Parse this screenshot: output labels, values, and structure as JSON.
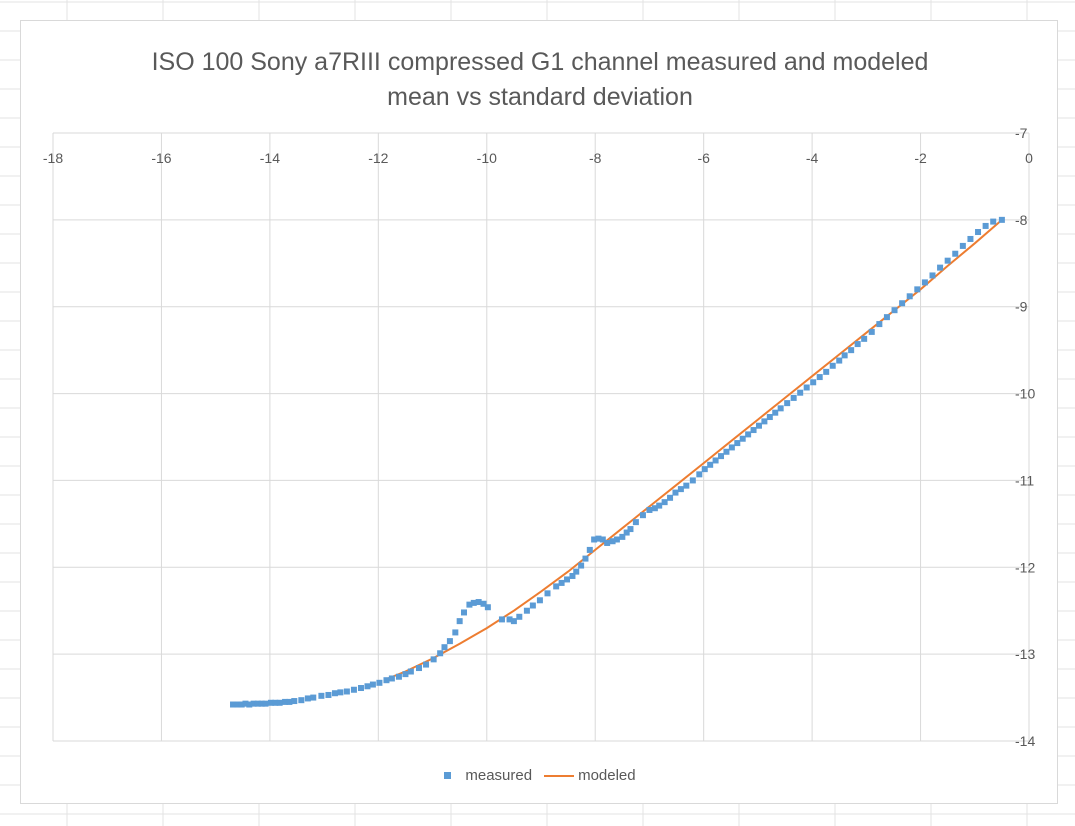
{
  "chart_data": {
    "type": "scatter",
    "title_line1": "ISO 100 Sony a7RIII compressed G1 channel measured and modeled",
    "title_line2": "mean vs standard deviation",
    "xlabel": "",
    "ylabel": "",
    "xlim": [
      -18,
      0
    ],
    "ylim": [
      -14,
      -7
    ],
    "x_ticks": [
      "-18",
      "-16",
      "-14",
      "-12",
      "-10",
      "-8",
      "-6",
      "-4",
      "-2",
      "0"
    ],
    "y_ticks": [
      "-7",
      "-8",
      "-9",
      "-10",
      "-11",
      "-12",
      "-13",
      "-14"
    ],
    "grid": true,
    "legend_position": "bottom",
    "series": [
      {
        "name": "measured",
        "kind": "markers",
        "color": "#5b9bd5",
        "points": [
          [
            -14.68,
            -13.58
          ],
          [
            -14.6,
            -13.58
          ],
          [
            -14.52,
            -13.58
          ],
          [
            -14.45,
            -13.57
          ],
          [
            -14.38,
            -13.58
          ],
          [
            -14.3,
            -13.57
          ],
          [
            -14.22,
            -13.57
          ],
          [
            -14.15,
            -13.57
          ],
          [
            -14.08,
            -13.57
          ],
          [
            -13.98,
            -13.56
          ],
          [
            -13.9,
            -13.56
          ],
          [
            -13.82,
            -13.56
          ],
          [
            -13.72,
            -13.55
          ],
          [
            -13.64,
            -13.55
          ],
          [
            -13.55,
            -13.54
          ],
          [
            -13.42,
            -13.53
          ],
          [
            -13.3,
            -13.51
          ],
          [
            -13.2,
            -13.5
          ],
          [
            -13.05,
            -13.48
          ],
          [
            -12.92,
            -13.47
          ],
          [
            -12.8,
            -13.45
          ],
          [
            -12.7,
            -13.44
          ],
          [
            -12.58,
            -13.43
          ],
          [
            -12.45,
            -13.41
          ],
          [
            -12.32,
            -13.39
          ],
          [
            -12.2,
            -13.37
          ],
          [
            -12.1,
            -13.35
          ],
          [
            -11.98,
            -13.33
          ],
          [
            -11.85,
            -13.3
          ],
          [
            -11.75,
            -13.28
          ],
          [
            -11.62,
            -13.26
          ],
          [
            -11.5,
            -13.23
          ],
          [
            -11.4,
            -13.2
          ],
          [
            -11.25,
            -13.16
          ],
          [
            -11.12,
            -13.12
          ],
          [
            -10.98,
            -13.06
          ],
          [
            -10.86,
            -12.99
          ],
          [
            -10.78,
            -12.92
          ],
          [
            -10.68,
            -12.85
          ],
          [
            -10.58,
            -12.75
          ],
          [
            -10.5,
            -12.62
          ],
          [
            -10.42,
            -12.52
          ],
          [
            -10.32,
            -12.43
          ],
          [
            -10.24,
            -12.41
          ],
          [
            -10.15,
            -12.4
          ],
          [
            -10.06,
            -12.42
          ],
          [
            -9.98,
            -12.46
          ],
          [
            -9.72,
            -12.6
          ],
          [
            -9.58,
            -12.6
          ],
          [
            -9.5,
            -12.62
          ],
          [
            -9.4,
            -12.57
          ],
          [
            -9.26,
            -12.5
          ],
          [
            -9.15,
            -12.44
          ],
          [
            -9.02,
            -12.38
          ],
          [
            -8.88,
            -12.3
          ],
          [
            -8.72,
            -12.22
          ],
          [
            -8.62,
            -12.18
          ],
          [
            -8.52,
            -12.14
          ],
          [
            -8.42,
            -12.1
          ],
          [
            -8.35,
            -12.05
          ],
          [
            -8.26,
            -11.98
          ],
          [
            -8.18,
            -11.9
          ],
          [
            -8.1,
            -11.8
          ],
          [
            -8.02,
            -11.68
          ],
          [
            -7.94,
            -11.67
          ],
          [
            -7.86,
            -11.68
          ],
          [
            -7.78,
            -11.72
          ],
          [
            -7.68,
            -11.7
          ],
          [
            -7.6,
            -11.68
          ],
          [
            -7.5,
            -11.65
          ],
          [
            -7.42,
            -11.6
          ],
          [
            -7.35,
            -11.56
          ],
          [
            -7.25,
            -11.48
          ],
          [
            -7.12,
            -11.4
          ],
          [
            -7.0,
            -11.34
          ],
          [
            -6.9,
            -11.32
          ],
          [
            -6.82,
            -11.29
          ],
          [
            -6.72,
            -11.25
          ],
          [
            -6.62,
            -11.2
          ],
          [
            -6.52,
            -11.14
          ],
          [
            -6.42,
            -11.1
          ],
          [
            -6.32,
            -11.06
          ],
          [
            -6.2,
            -11.0
          ],
          [
            -6.08,
            -10.93
          ],
          [
            -5.98,
            -10.87
          ],
          [
            -5.88,
            -10.82
          ],
          [
            -5.78,
            -10.77
          ],
          [
            -5.68,
            -10.72
          ],
          [
            -5.58,
            -10.67
          ],
          [
            -5.48,
            -10.62
          ],
          [
            -5.38,
            -10.57
          ],
          [
            -5.28,
            -10.52
          ],
          [
            -5.18,
            -10.47
          ],
          [
            -5.08,
            -10.42
          ],
          [
            -4.98,
            -10.37
          ],
          [
            -4.88,
            -10.32
          ],
          [
            -4.78,
            -10.27
          ],
          [
            -4.68,
            -10.22
          ],
          [
            -4.58,
            -10.17
          ],
          [
            -4.46,
            -10.11
          ],
          [
            -4.34,
            -10.05
          ],
          [
            -4.22,
            -9.99
          ],
          [
            -4.1,
            -9.93
          ],
          [
            -3.98,
            -9.87
          ],
          [
            -3.86,
            -9.81
          ],
          [
            -3.74,
            -9.75
          ],
          [
            -3.62,
            -9.68
          ],
          [
            -3.5,
            -9.62
          ],
          [
            -3.4,
            -9.56
          ],
          [
            -3.28,
            -9.5
          ],
          [
            -3.16,
            -9.43
          ],
          [
            -3.04,
            -9.37
          ],
          [
            -2.9,
            -9.29
          ],
          [
            -2.76,
            -9.2
          ],
          [
            -2.62,
            -9.12
          ],
          [
            -2.48,
            -9.04
          ],
          [
            -2.34,
            -8.96
          ],
          [
            -2.2,
            -8.88
          ],
          [
            -2.06,
            -8.8
          ],
          [
            -1.92,
            -8.72
          ],
          [
            -1.78,
            -8.64
          ],
          [
            -1.64,
            -8.55
          ],
          [
            -1.5,
            -8.47
          ],
          [
            -1.36,
            -8.39
          ],
          [
            -1.22,
            -8.3
          ],
          [
            -1.08,
            -8.22
          ],
          [
            -0.94,
            -8.14
          ],
          [
            -0.8,
            -8.07
          ],
          [
            -0.66,
            -8.02
          ],
          [
            -0.5,
            -8.0
          ]
        ]
      },
      {
        "name": "modeled",
        "kind": "line",
        "color": "#ed7d31",
        "points": [
          [
            -11.9,
            -13.3
          ],
          [
            -11.5,
            -13.2
          ],
          [
            -11.0,
            -13.05
          ],
          [
            -10.5,
            -12.88
          ],
          [
            -10.0,
            -12.7
          ],
          [
            -9.5,
            -12.5
          ],
          [
            -9.0,
            -12.28
          ],
          [
            -8.5,
            -12.05
          ],
          [
            -8.0,
            -11.8
          ],
          [
            -7.5,
            -11.55
          ],
          [
            -7.0,
            -11.3
          ],
          [
            -6.5,
            -11.05
          ],
          [
            -6.0,
            -10.8
          ],
          [
            -5.5,
            -10.55
          ],
          [
            -5.0,
            -10.3
          ],
          [
            -4.5,
            -10.05
          ],
          [
            -4.0,
            -9.8
          ],
          [
            -3.5,
            -9.55
          ],
          [
            -3.0,
            -9.3
          ],
          [
            -2.5,
            -9.05
          ],
          [
            -2.0,
            -8.8
          ],
          [
            -1.5,
            -8.53
          ],
          [
            -1.0,
            -8.27
          ],
          [
            -0.5,
            -8.0
          ]
        ]
      }
    ]
  }
}
